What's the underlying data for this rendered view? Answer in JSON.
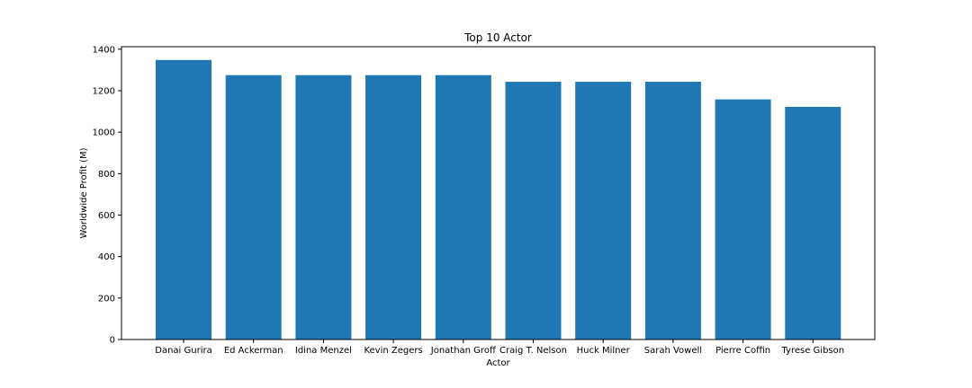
{
  "chart_data": {
    "type": "bar",
    "title": "Top 10 Actor",
    "xlabel": "Actor",
    "ylabel": "Worldwide Profit (M)",
    "categories": [
      "Danai Gurira",
      "Ed Ackerman",
      "Idina Menzel",
      "Kevin Zegers",
      "Jonathan Groff",
      "Craig T. Nelson",
      "Huck Milner",
      "Sarah Vowell",
      "Pierre Coffin",
      "Tyrese Gibson"
    ],
    "values": [
      1348,
      1275,
      1275,
      1275,
      1275,
      1243,
      1243,
      1243,
      1158,
      1122
    ],
    "ylim": [
      0,
      1400
    ],
    "yticks": [
      0,
      200,
      400,
      600,
      800,
      1000,
      1200,
      1400
    ],
    "bar_color": "#1f77b4",
    "grid": false,
    "legend": false
  }
}
